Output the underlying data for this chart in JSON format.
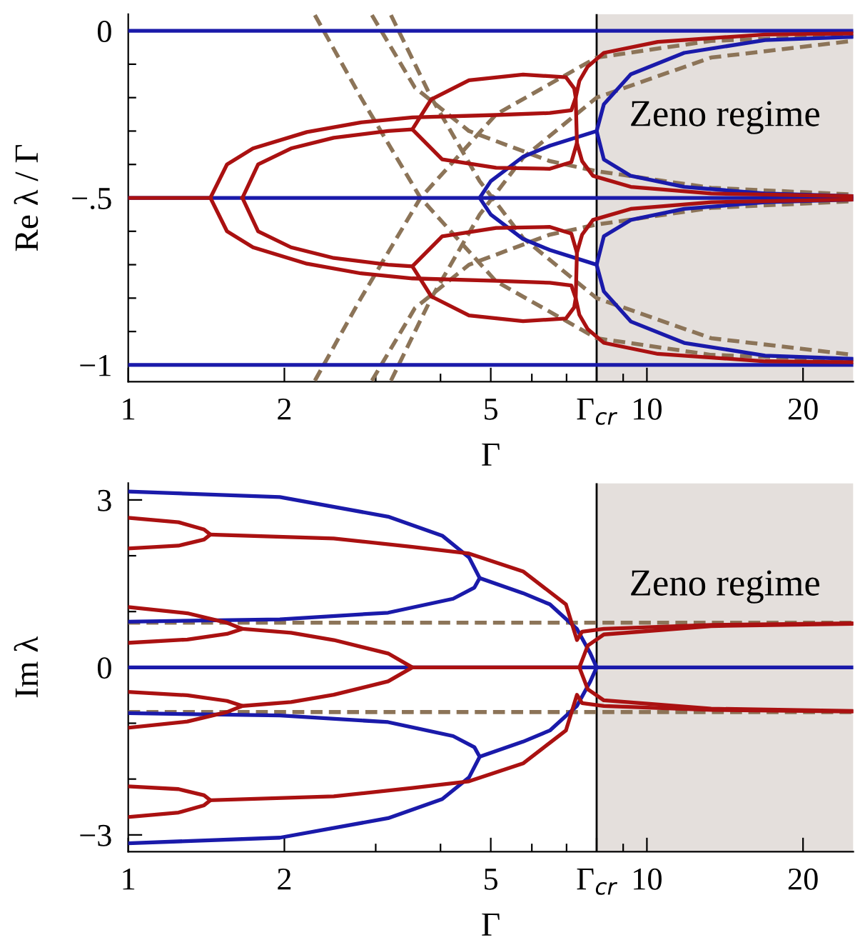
{
  "chart_data": [
    {
      "type": "line",
      "xlabel": "Γ",
      "ylabel": "Re λ / Γ",
      "log": "x",
      "grid": false,
      "legend": false,
      "xlim": [
        1,
        25
      ],
      "xticks": [
        1,
        2,
        {
          "value": 3,
          "label": null
        },
        {
          "value": 4,
          "label": null
        },
        5,
        {
          "value": 6,
          "label": null
        },
        {
          "value": 7,
          "label": null
        },
        {
          "value": 8,
          "label": "Γ$_{cr}$"
        },
        {
          "value": 9,
          "label": null
        },
        10,
        20
      ],
      "ylim": [
        -1.05,
        0.05
      ],
      "yticks": [
        0,
        {
          "value": -0.1,
          "label": null
        },
        {
          "value": -0.2,
          "label": null
        },
        {
          "value": -0.3,
          "label": null
        },
        {
          "value": -0.4,
          "label": null
        },
        {
          "value": -0.5,
          "label": "−.5"
        },
        {
          "value": -0.6,
          "label": null
        },
        {
          "value": -0.7,
          "label": null
        },
        {
          "value": -0.8,
          "label": null
        },
        {
          "value": -0.9,
          "label": null
        },
        {
          "value": -1,
          "label": "−1"
        }
      ],
      "bands": [
        {
          "axis": "x",
          "from": 8,
          "to": 25,
          "label": "Zeno regime",
          "color": "#e4dfdc"
        }
      ],
      "ref_lines": [
        {
          "axis": "x",
          "value": 8,
          "color": "#000000"
        }
      ],
      "series": [
        {
          "color": "#8c7458",
          "line_style": "dashed",
          "x": [
            2.29,
            2.81,
            3.66,
            5.12,
            8.0,
            13.3,
            25
          ],
          "values": [
            0.047,
            -0.2,
            -0.5,
            -0.75,
            -0.92,
            -0.97,
            -0.985
          ]
        },
        {
          "color": "#8c7458",
          "line_style": "dashed",
          "x": [
            2.29,
            2.81,
            3.66,
            5.12,
            8.0,
            13.3,
            25
          ],
          "values": [
            -1.047,
            -0.8,
            -0.5,
            -0.25,
            -0.08,
            -0.03,
            -0.015
          ]
        },
        {
          "color": "#8c7458",
          "line_style": "dashed",
          "x": [
            2.95,
            3.57,
            4.54,
            6.5,
            8.0,
            13.3,
            25
          ],
          "values": [
            0.047,
            -0.17,
            -0.3,
            -0.39,
            -0.42,
            -0.47,
            -0.49
          ]
        },
        {
          "color": "#8c7458",
          "line_style": "dashed",
          "x": [
            2.95,
            3.57,
            4.54,
            6.5,
            8.0,
            13.3,
            25
          ],
          "values": [
            -1.047,
            -0.83,
            -0.7,
            -0.61,
            -0.58,
            -0.53,
            -0.51
          ]
        },
        {
          "color": "#8c7458",
          "line_style": "dashed",
          "x": [
            3.21,
            3.84,
            4.76,
            5.77,
            8.0,
            13.3,
            25
          ],
          "values": [
            0.047,
            -0.2,
            -0.45,
            -0.62,
            -0.8,
            -0.92,
            -0.97
          ]
        },
        {
          "color": "#8c7458",
          "line_style": "dashed",
          "x": [
            3.21,
            3.84,
            4.76,
            5.77,
            8.0,
            13.3,
            25
          ],
          "values": [
            -1.047,
            -0.8,
            -0.55,
            -0.38,
            -0.2,
            -0.08,
            -0.03
          ]
        },
        {
          "color": "#1a1aaa",
          "line_style": "solid",
          "x": [
            1,
            25
          ],
          "values": [
            0,
            0
          ]
        },
        {
          "color": "#1a1aaa",
          "line_style": "solid",
          "x": [
            1,
            25
          ],
          "values": [
            -0.5,
            -0.5
          ]
        },
        {
          "color": "#1a1aaa",
          "line_style": "solid",
          "x": [
            1,
            25
          ],
          "values": [
            -1,
            -1
          ]
        },
        {
          "color": "#1a1aaa",
          "line_style": "solid",
          "x": [
            8.0,
            6.5,
            5.77,
            5.0,
            4.76,
            5.0,
            5.77,
            6.5,
            8.0
          ],
          "values": [
            -0.3,
            -0.344,
            -0.377,
            -0.45,
            -0.5,
            -0.55,
            -0.623,
            -0.656,
            -0.7
          ]
        },
        {
          "color": "#1a1aaa",
          "line_style": "solid",
          "x": [
            25,
            16.9,
            11.8,
            9.31,
            8.26,
            8.0,
            8.26,
            9.31,
            11.8,
            16.9,
            25
          ],
          "values": [
            -0.018,
            -0.028,
            -0.066,
            -0.13,
            -0.22,
            -0.3,
            -0.385,
            -0.434,
            -0.467,
            -0.487,
            -0.495
          ]
        },
        {
          "color": "#1a1aaa",
          "line_style": "solid",
          "x": [
            25,
            16.9,
            11.8,
            9.31,
            8.26,
            8.0,
            8.26,
            9.31,
            11.8,
            16.9,
            25
          ],
          "values": [
            -0.505,
            -0.513,
            -0.533,
            -0.566,
            -0.615,
            -0.7,
            -0.78,
            -0.87,
            -0.934,
            -0.972,
            -0.982
          ]
        },
        {
          "color": "#aa1111",
          "line_style": "solid",
          "x": [
            1,
            1.44
          ],
          "values": [
            -0.5,
            -0.5
          ]
        },
        {
          "color": "#aa1111",
          "line_style": "solid",
          "x": [
            1.44,
            1.55,
            1.74,
            2.21,
            2.81,
            3.53,
            5.12,
            6.5,
            7.15,
            7.29,
            7.41,
            7.69,
            8.26,
            10.5,
            16.9,
            25
          ],
          "values": [
            -0.5,
            -0.4,
            -0.352,
            -0.303,
            -0.274,
            -0.259,
            -0.252,
            -0.246,
            -0.238,
            -0.2,
            -0.15,
            -0.107,
            -0.066,
            -0.033,
            -0.011,
            -0.008
          ]
        },
        {
          "color": "#aa1111",
          "line_style": "solid",
          "x": [
            1.66,
            1.78,
            2.06,
            2.49,
            3.17,
            3.53,
            4.03,
            5.12,
            6.5,
            7.15,
            7.33,
            7.5,
            7.87,
            9.31,
            13.3,
            25
          ],
          "values": [
            -0.5,
            -0.4,
            -0.352,
            -0.32,
            -0.3,
            -0.295,
            -0.385,
            -0.41,
            -0.413,
            -0.393,
            -0.336,
            -0.39,
            -0.434,
            -0.467,
            -0.487,
            -0.495
          ]
        },
        {
          "color": "#aa1111",
          "line_style": "solid",
          "x": [
            3.53,
            3.84,
            4.54,
            5.77,
            6.98,
            7.24,
            7.29,
            7.33
          ],
          "values": [
            -0.295,
            -0.205,
            -0.148,
            -0.131,
            -0.139,
            -0.172,
            -0.2,
            -0.336
          ]
        },
        {
          "color": "#aa1111",
          "line_style": "solid",
          "x": [
            1.44,
            1.55,
            1.74,
            2.21,
            2.81,
            3.53,
            5.12,
            6.5,
            7.15,
            7.29,
            7.41,
            7.69,
            8.26,
            10.5,
            16.9,
            25
          ],
          "values": [
            -0.5,
            -0.6,
            -0.648,
            -0.697,
            -0.726,
            -0.741,
            -0.748,
            -0.754,
            -0.762,
            -0.8,
            -0.85,
            -0.893,
            -0.934,
            -0.967,
            -0.989,
            -0.992
          ]
        },
        {
          "color": "#aa1111",
          "line_style": "solid",
          "x": [
            1.66,
            1.78,
            2.06,
            2.49,
            3.17,
            3.53,
            4.03,
            5.12,
            6.5,
            7.15,
            7.33,
            7.5,
            7.87,
            9.31,
            13.3,
            25
          ],
          "values": [
            -0.5,
            -0.6,
            -0.648,
            -0.68,
            -0.7,
            -0.705,
            -0.615,
            -0.59,
            -0.587,
            -0.607,
            -0.664,
            -0.61,
            -0.566,
            -0.533,
            -0.513,
            -0.505
          ]
        },
        {
          "color": "#aa1111",
          "line_style": "solid",
          "x": [
            3.53,
            3.84,
            4.54,
            5.77,
            6.98,
            7.24,
            7.29,
            7.33
          ],
          "values": [
            -0.705,
            -0.795,
            -0.852,
            -0.869,
            -0.861,
            -0.828,
            -0.8,
            -0.664
          ]
        }
      ]
    },
    {
      "type": "line",
      "xlabel": "Γ",
      "ylabel": "Im λ",
      "log": "x",
      "grid": false,
      "legend": false,
      "xlim": [
        1,
        25
      ],
      "xticks": [
        1,
        2,
        {
          "value": 3,
          "label": null
        },
        {
          "value": 4,
          "label": null
        },
        5,
        {
          "value": 6,
          "label": null
        },
        {
          "value": 7,
          "label": null
        },
        {
          "value": 8,
          "label": "Γ$_{cr}$"
        },
        {
          "value": 9,
          "label": null
        },
        10,
        20
      ],
      "ylim": [
        -3.3,
        3.3
      ],
      "yticks": [
        3,
        {
          "value": 2,
          "label": null
        },
        {
          "value": 1,
          "label": null
        },
        0,
        {
          "value": -1,
          "label": null
        },
        {
          "value": -2,
          "label": null
        },
        {
          "value": -3,
          "label": "−3"
        }
      ],
      "bands": [
        {
          "axis": "x",
          "from": 8,
          "to": 25,
          "label": "Zeno regime",
          "color": "#e4dfdc"
        }
      ],
      "ref_lines": [
        {
          "axis": "x",
          "value": 8,
          "color": "#000000"
        }
      ],
      "series": [
        {
          "color": "#8c7458",
          "line_style": "dashed",
          "x": [
            1,
            25
          ],
          "values": [
            0.8,
            0.8
          ]
        },
        {
          "color": "#8c7458",
          "line_style": "dashed",
          "x": [
            1,
            25
          ],
          "values": [
            -0.8,
            -0.8
          ]
        },
        {
          "color": "#1a1aaa",
          "line_style": "solid",
          "x": [
            1,
            25
          ],
          "values": [
            0,
            0
          ]
        },
        {
          "color": "#1a1aaa",
          "line_style": "solid",
          "x": [
            1,
            1.96,
            3.17,
            4.03,
            4.54,
            4.76,
            4.65,
            4.23,
            3.17,
            1.96,
            1
          ],
          "values": [
            3.15,
            3.05,
            2.7,
            2.36,
            1.97,
            1.6,
            1.43,
            1.23,
            0.98,
            0.86,
            0.82
          ]
        },
        {
          "color": "#1a1aaa",
          "line_style": "solid",
          "x": [
            1,
            1.96,
            3.17,
            4.03,
            4.54,
            4.76,
            4.65,
            4.23,
            3.17,
            1.96,
            1
          ],
          "values": [
            -3.15,
            -3.05,
            -2.7,
            -2.36,
            -1.97,
            -1.6,
            -1.43,
            -1.23,
            -0.98,
            -0.86,
            -0.82
          ]
        },
        {
          "color": "#1a1aaa",
          "line_style": "solid",
          "x": [
            4.76,
            5.77,
            6.5,
            7.33,
            7.78,
            8.0,
            7.78,
            7.33,
            6.5,
            5.77,
            4.76
          ],
          "values": [
            1.6,
            1.33,
            1.13,
            0.69,
            0.25,
            0,
            -0.25,
            -0.69,
            -1.13,
            -1.33,
            -1.6
          ]
        },
        {
          "color": "#aa1111",
          "line_style": "solid",
          "x": [
            1,
            1.25,
            1.4,
            1.44,
            1.4,
            1.25,
            1
          ],
          "values": [
            2.68,
            2.6,
            2.47,
            2.38,
            2.29,
            2.18,
            2.13
          ]
        },
        {
          "color": "#aa1111",
          "line_style": "solid",
          "x": [
            1,
            1.25,
            1.4,
            1.44,
            1.4,
            1.25,
            1
          ],
          "values": [
            -2.68,
            -2.6,
            -2.47,
            -2.38,
            -2.29,
            -2.18,
            -2.13
          ]
        },
        {
          "color": "#aa1111",
          "line_style": "solid",
          "x": [
            1.44,
            2.49,
            3.53,
            4.54,
            5.77,
            6.98,
            7.33,
            7.5,
            8.26,
            13.3,
            25
          ],
          "values": [
            2.38,
            2.31,
            2.16,
            2.04,
            1.72,
            1.13,
            0.49,
            0.64,
            0.69,
            0.76,
            0.79
          ]
        },
        {
          "color": "#aa1111",
          "line_style": "solid",
          "x": [
            1.44,
            2.49,
            3.53,
            4.54,
            5.77,
            6.98,
            7.33,
            7.5,
            8.26,
            13.3,
            25
          ],
          "values": [
            -2.38,
            -2.31,
            -2.16,
            -2.04,
            -1.72,
            -1.13,
            -0.49,
            -0.64,
            -0.69,
            -0.76,
            -0.79
          ]
        },
        {
          "color": "#aa1111",
          "line_style": "solid",
          "x": [
            1,
            1.3,
            1.55,
            1.66,
            1.55,
            1.3,
            1
          ],
          "values": [
            1.08,
            0.97,
            0.8,
            0.69,
            0.6,
            0.5,
            0.44
          ]
        },
        {
          "color": "#aa1111",
          "line_style": "solid",
          "x": [
            1,
            1.3,
            1.55,
            1.66,
            1.55,
            1.3,
            1
          ],
          "values": [
            -1.08,
            -0.97,
            -0.8,
            -0.69,
            -0.6,
            -0.5,
            -0.44
          ]
        },
        {
          "color": "#aa1111",
          "line_style": "solid",
          "x": [
            1.66,
            2.06,
            2.49,
            3.17,
            3.53,
            3.17,
            2.49,
            2.06,
            1.66
          ],
          "values": [
            0.69,
            0.62,
            0.49,
            0.25,
            0,
            -0.25,
            -0.49,
            -0.62,
            -0.69
          ]
        },
        {
          "color": "#aa1111",
          "line_style": "solid",
          "x": [
            3.53,
            7.41
          ],
          "values": [
            0,
            0
          ]
        },
        {
          "color": "#aa1111",
          "line_style": "solid",
          "x": [
            25,
            13.3,
            8.26,
            7.69,
            7.41,
            7.69,
            8.26,
            13.3,
            25
          ],
          "values": [
            0.78,
            0.74,
            0.59,
            0.39,
            0,
            -0.39,
            -0.59,
            -0.74,
            -0.78
          ]
        }
      ]
    }
  ]
}
